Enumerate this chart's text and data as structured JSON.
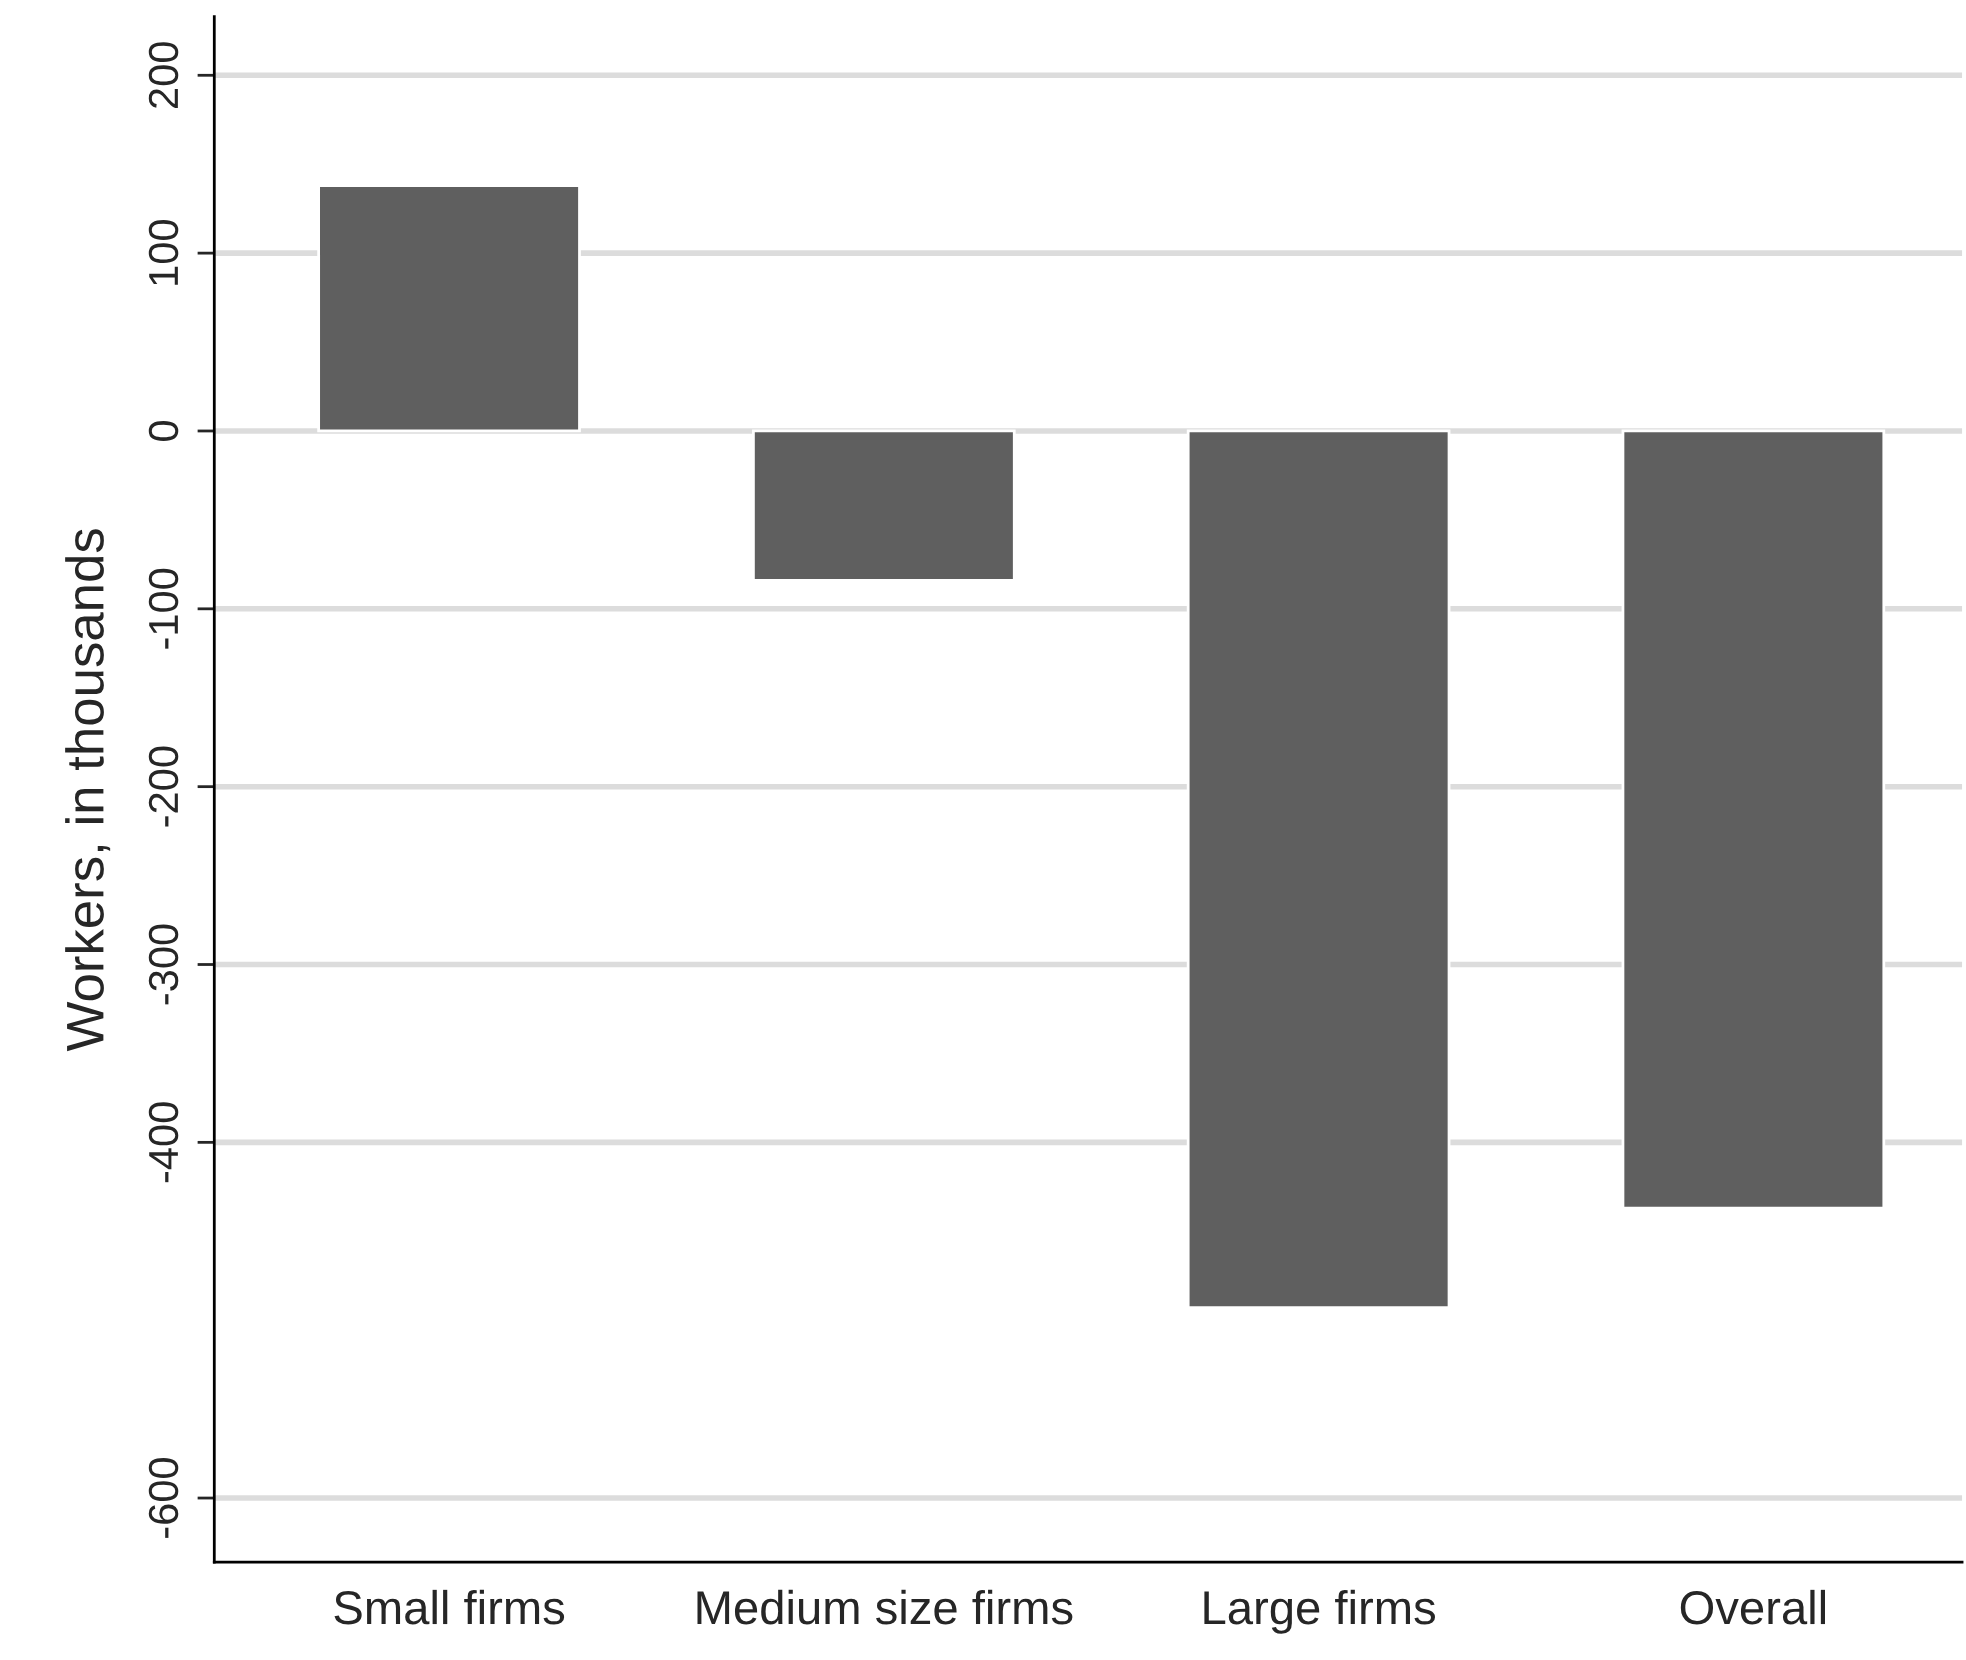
{
  "chart_data": {
    "type": "bar",
    "ylabel": "Workers, in thousands",
    "categories": [
      "Small firms",
      "Medium size firms",
      "Large firms",
      "Overall"
    ],
    "values": [
      138,
      -84,
      -493,
      -437
    ],
    "color": "#5f5f5f",
    "ylim": [
      -636,
      233
    ],
    "yticks": [
      200,
      100,
      0,
      -100,
      -200,
      -300,
      -400,
      -600
    ],
    "grid": "y"
  }
}
